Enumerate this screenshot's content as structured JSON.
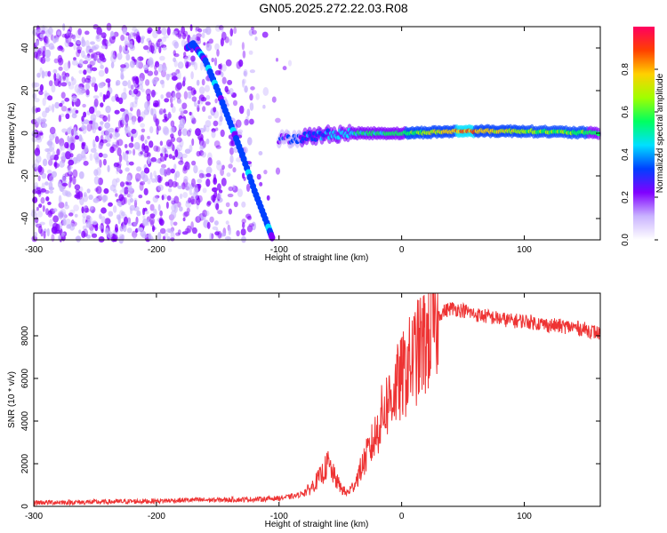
{
  "title": "GN05.2025.272.22.03.R08",
  "chart_data": [
    {
      "type": "heatmap",
      "xlabel": "Height of straight line (km)",
      "ylabel": "Frequency (Hz)",
      "xlim": [
        -300,
        162
      ],
      "ylim": [
        -50,
        50
      ],
      "xticks": [
        -300,
        -200,
        -100,
        0,
        100
      ],
      "yticks": [
        -40,
        -20,
        0,
        20,
        40
      ],
      "grid": false,
      "colorbar": {
        "label": "Normalized spectral amplitude",
        "range": [
          0,
          1
        ],
        "ticks": [
          "0.0",
          "0.2",
          "0.4",
          "0.6",
          "0.8"
        ],
        "colors": [
          "#ffffff",
          "#c9b3ff",
          "#8000ff",
          "#0040ff",
          "#00e0ff",
          "#00ff60",
          "#a0ff00",
          "#ffd000",
          "#ff4000",
          "#ff0060"
        ]
      },
      "features": {
        "curved_trace": {
          "x": [
            -175,
            -170,
            -160,
            -150,
            -140,
            -130,
            -120,
            -110,
            -105
          ],
          "y": [
            40,
            42,
            34,
            20,
            5,
            -10,
            -27,
            -42,
            -50
          ],
          "amplitude": 0.4
        },
        "flat_trace": {
          "x": [
            -100,
            -50,
            0,
            50,
            100,
            162
          ],
          "y": [
            -3,
            0,
            0,
            1,
            1,
            0
          ],
          "amplitude": [
            0.3,
            0.5,
            0.6,
            0.9,
            0.7,
            0.6
          ]
        }
      }
    },
    {
      "type": "line",
      "xlabel": "Height of straight line (km)",
      "ylabel": "SNR (10 * v/v)",
      "xlim": [
        -300,
        162
      ],
      "ylim": [
        0,
        10000
      ],
      "xticks": [
        -300,
        -200,
        -100,
        0,
        100
      ],
      "yticks": [
        0,
        2000,
        4000,
        6000,
        8000
      ],
      "grid": false,
      "color": "#ee3333",
      "series": [
        {
          "x": [
            -300,
            -250,
            -200,
            -170,
            -150,
            -120,
            -100,
            -85,
            -75,
            -65,
            -60,
            -55,
            -50,
            -45,
            -40,
            -35,
            -30,
            -25,
            -20,
            -15,
            -10,
            -5,
            0,
            5,
            10,
            15,
            20,
            25,
            30,
            40,
            50,
            60,
            70,
            80,
            90,
            100,
            110,
            120,
            130,
            140,
            150,
            162
          ],
          "values": [
            180,
            200,
            250,
            300,
            300,
            330,
            380,
            500,
            800,
            1500,
            2000,
            1400,
            900,
            600,
            900,
            1500,
            2200,
            2800,
            3500,
            4500,
            5000,
            5500,
            6000,
            6500,
            7000,
            7400,
            7800,
            8400,
            9000,
            9300,
            9200,
            9000,
            8900,
            8800,
            8700,
            8700,
            8600,
            8500,
            8450,
            8400,
            8300,
            8100
          ]
        }
      ]
    }
  ]
}
